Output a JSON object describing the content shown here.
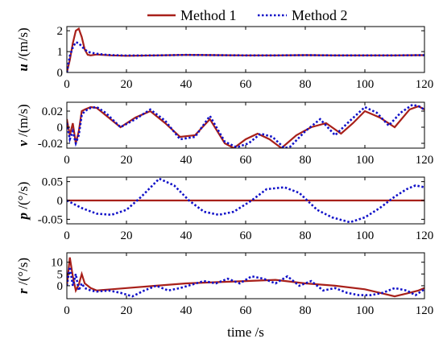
{
  "legend": {
    "items": [
      {
        "label": "Method 1",
        "color": "#a8201a",
        "style": "solid"
      },
      {
        "label": "Method 2",
        "color": "#1010c8",
        "style": "dotted"
      }
    ]
  },
  "chart_data": [
    {
      "type": "line",
      "ylabel_var": "u",
      "ylabel_unit": " /(m/s)",
      "xlim": [
        0,
        120
      ],
      "ylim": [
        0,
        2.2
      ],
      "yticks": [
        "0",
        "1",
        "2"
      ],
      "ytick_values": [
        0,
        1,
        2
      ],
      "series": [
        {
          "name": "Method 1",
          "x": [
            0,
            1,
            2,
            3,
            4,
            5,
            6,
            7,
            8,
            10,
            12,
            15,
            20,
            30,
            40,
            50,
            60,
            70,
            80,
            90,
            100,
            110,
            120
          ],
          "values": [
            0,
            0.6,
            1.4,
            2.0,
            2.1,
            1.7,
            1.1,
            0.85,
            0.82,
            0.86,
            0.84,
            0.82,
            0.8,
            0.82,
            0.84,
            0.83,
            0.82,
            0.82,
            0.83,
            0.82,
            0.82,
            0.82,
            0.83
          ]
        },
        {
          "name": "Method 2",
          "x": [
            0,
            1,
            2,
            3,
            4,
            5,
            6,
            7,
            8,
            10,
            12,
            15,
            20,
            30,
            40,
            50,
            60,
            70,
            80,
            90,
            100,
            110,
            120
          ],
          "values": [
            0,
            0.8,
            1.2,
            1.45,
            1.4,
            1.25,
            1.1,
            1.0,
            0.95,
            0.9,
            0.86,
            0.83,
            0.81,
            0.82,
            0.84,
            0.83,
            0.82,
            0.82,
            0.83,
            0.82,
            0.82,
            0.82,
            0.83
          ]
        }
      ]
    },
    {
      "type": "line",
      "ylabel_var": "v",
      "ylabel_unit": " /(m/s)",
      "xlim": [
        0,
        120
      ],
      "ylim": [
        -0.026,
        0.031
      ],
      "yticks": [
        "-0.02",
        "0",
        "0.02"
      ],
      "ytick_values": [
        -0.02,
        0,
        0.02
      ],
      "series": [
        {
          "name": "Method 1",
          "x": [
            0,
            1,
            2,
            3,
            4,
            5,
            6,
            8,
            10,
            13,
            18,
            23,
            28,
            33,
            38,
            43,
            48,
            53,
            56,
            60,
            64,
            68,
            72,
            77,
            82,
            87,
            92,
            96,
            100,
            105,
            110,
            115,
            118,
            120
          ],
          "values": [
            0.01,
            -0.01,
            0.005,
            -0.02,
            -0.005,
            0.02,
            0.022,
            0.025,
            0.024,
            0.015,
            0.0,
            0.012,
            0.02,
            0.005,
            -0.012,
            -0.01,
            0.01,
            -0.02,
            -0.026,
            -0.015,
            -0.008,
            -0.015,
            -0.026,
            -0.01,
            0.0,
            0.005,
            -0.008,
            0.005,
            0.02,
            0.012,
            0.0,
            0.022,
            0.026,
            0.022
          ]
        },
        {
          "name": "Method 2",
          "x": [
            0,
            1,
            2,
            3,
            4,
            5,
            6,
            8,
            10,
            13,
            18,
            23,
            28,
            33,
            38,
            43,
            48,
            53,
            57,
            61,
            65,
            69,
            73,
            75,
            80,
            85,
            90,
            95,
            100,
            104,
            108,
            112,
            116,
            119,
            120
          ],
          "values": [
            0.005,
            -0.015,
            -0.005,
            -0.02,
            -0.01,
            0.015,
            0.02,
            0.024,
            0.025,
            0.018,
            0.0,
            0.01,
            0.022,
            0.008,
            -0.015,
            -0.012,
            0.014,
            -0.018,
            -0.025,
            -0.02,
            -0.008,
            -0.012,
            -0.026,
            -0.024,
            -0.005,
            0.01,
            -0.01,
            0.008,
            0.025,
            0.018,
            0.002,
            0.018,
            0.028,
            0.025,
            0.02
          ]
        }
      ]
    },
    {
      "type": "line",
      "ylabel_var": "p",
      "ylabel_unit": " /(°/s)",
      "xlim": [
        0,
        120
      ],
      "ylim": [
        -0.062,
        0.062
      ],
      "yticks": [
        "-0.05",
        "0",
        "0.05"
      ],
      "ytick_values": [
        -0.05,
        0,
        0.05
      ],
      "series": [
        {
          "name": "Method 1",
          "x": [
            0,
            120
          ],
          "values": [
            0,
            0
          ]
        },
        {
          "name": "Method 2",
          "x": [
            0,
            5,
            10,
            15,
            20,
            25,
            31,
            36,
            41,
            46,
            51,
            56,
            62,
            67,
            73,
            78,
            84,
            89,
            95,
            100,
            105,
            110,
            114,
            117,
            120
          ],
          "values": [
            0,
            -0.02,
            -0.035,
            -0.038,
            -0.025,
            0.01,
            0.058,
            0.04,
            0.0,
            -0.03,
            -0.038,
            -0.03,
            0.0,
            0.03,
            0.035,
            0.02,
            -0.025,
            -0.045,
            -0.058,
            -0.045,
            -0.02,
            0.01,
            0.03,
            0.04,
            0.035
          ]
        }
      ]
    },
    {
      "type": "line",
      "ylabel_var": "r",
      "ylabel_unit": " /(°/s)",
      "xlim": [
        0,
        120
      ],
      "ylim": [
        -5.5,
        14
      ],
      "yticks": [
        "0",
        "5",
        "10"
      ],
      "ytick_values": [
        0,
        5,
        10
      ],
      "series": [
        {
          "name": "Method 1",
          "x": [
            0,
            1,
            2,
            3,
            4,
            5,
            6,
            8,
            10,
            15,
            20,
            30,
            40,
            50,
            60,
            70,
            80,
            90,
            100,
            105,
            110,
            115,
            118,
            120
          ],
          "values": [
            0,
            12,
            4,
            -2,
            0.5,
            5,
            1,
            -1,
            -2,
            -1.5,
            -1,
            0,
            1,
            1.5,
            2,
            2.5,
            1,
            0,
            -1.5,
            -3,
            -4.5,
            -3,
            -2,
            -1
          ]
        },
        {
          "name": "Method 2",
          "x": [
            0,
            1,
            2,
            3,
            4,
            5,
            6,
            8,
            10,
            14,
            18,
            22,
            26,
            30,
            34,
            38,
            42,
            46,
            50,
            54,
            58,
            62,
            66,
            70,
            74,
            78,
            82,
            86,
            90,
            94,
            98,
            102,
            106,
            110,
            114,
            117,
            120
          ],
          "values": [
            0,
            8,
            0,
            5,
            -2,
            1,
            -1,
            -2,
            -2.5,
            -2,
            -3,
            -4.5,
            -2,
            0,
            -2,
            -1,
            0.5,
            2,
            1,
            3,
            1,
            4,
            3,
            1,
            4,
            0,
            2,
            -2,
            -1,
            -3,
            -4,
            -4,
            -3,
            -1,
            -2,
            -4,
            -1.5
          ]
        }
      ]
    }
  ],
  "xlabel": "time /s",
  "xticks": [
    "0",
    "20",
    "40",
    "60",
    "80",
    "100",
    "120"
  ],
  "xtick_values": [
    0,
    20,
    40,
    60,
    80,
    100,
    120
  ]
}
